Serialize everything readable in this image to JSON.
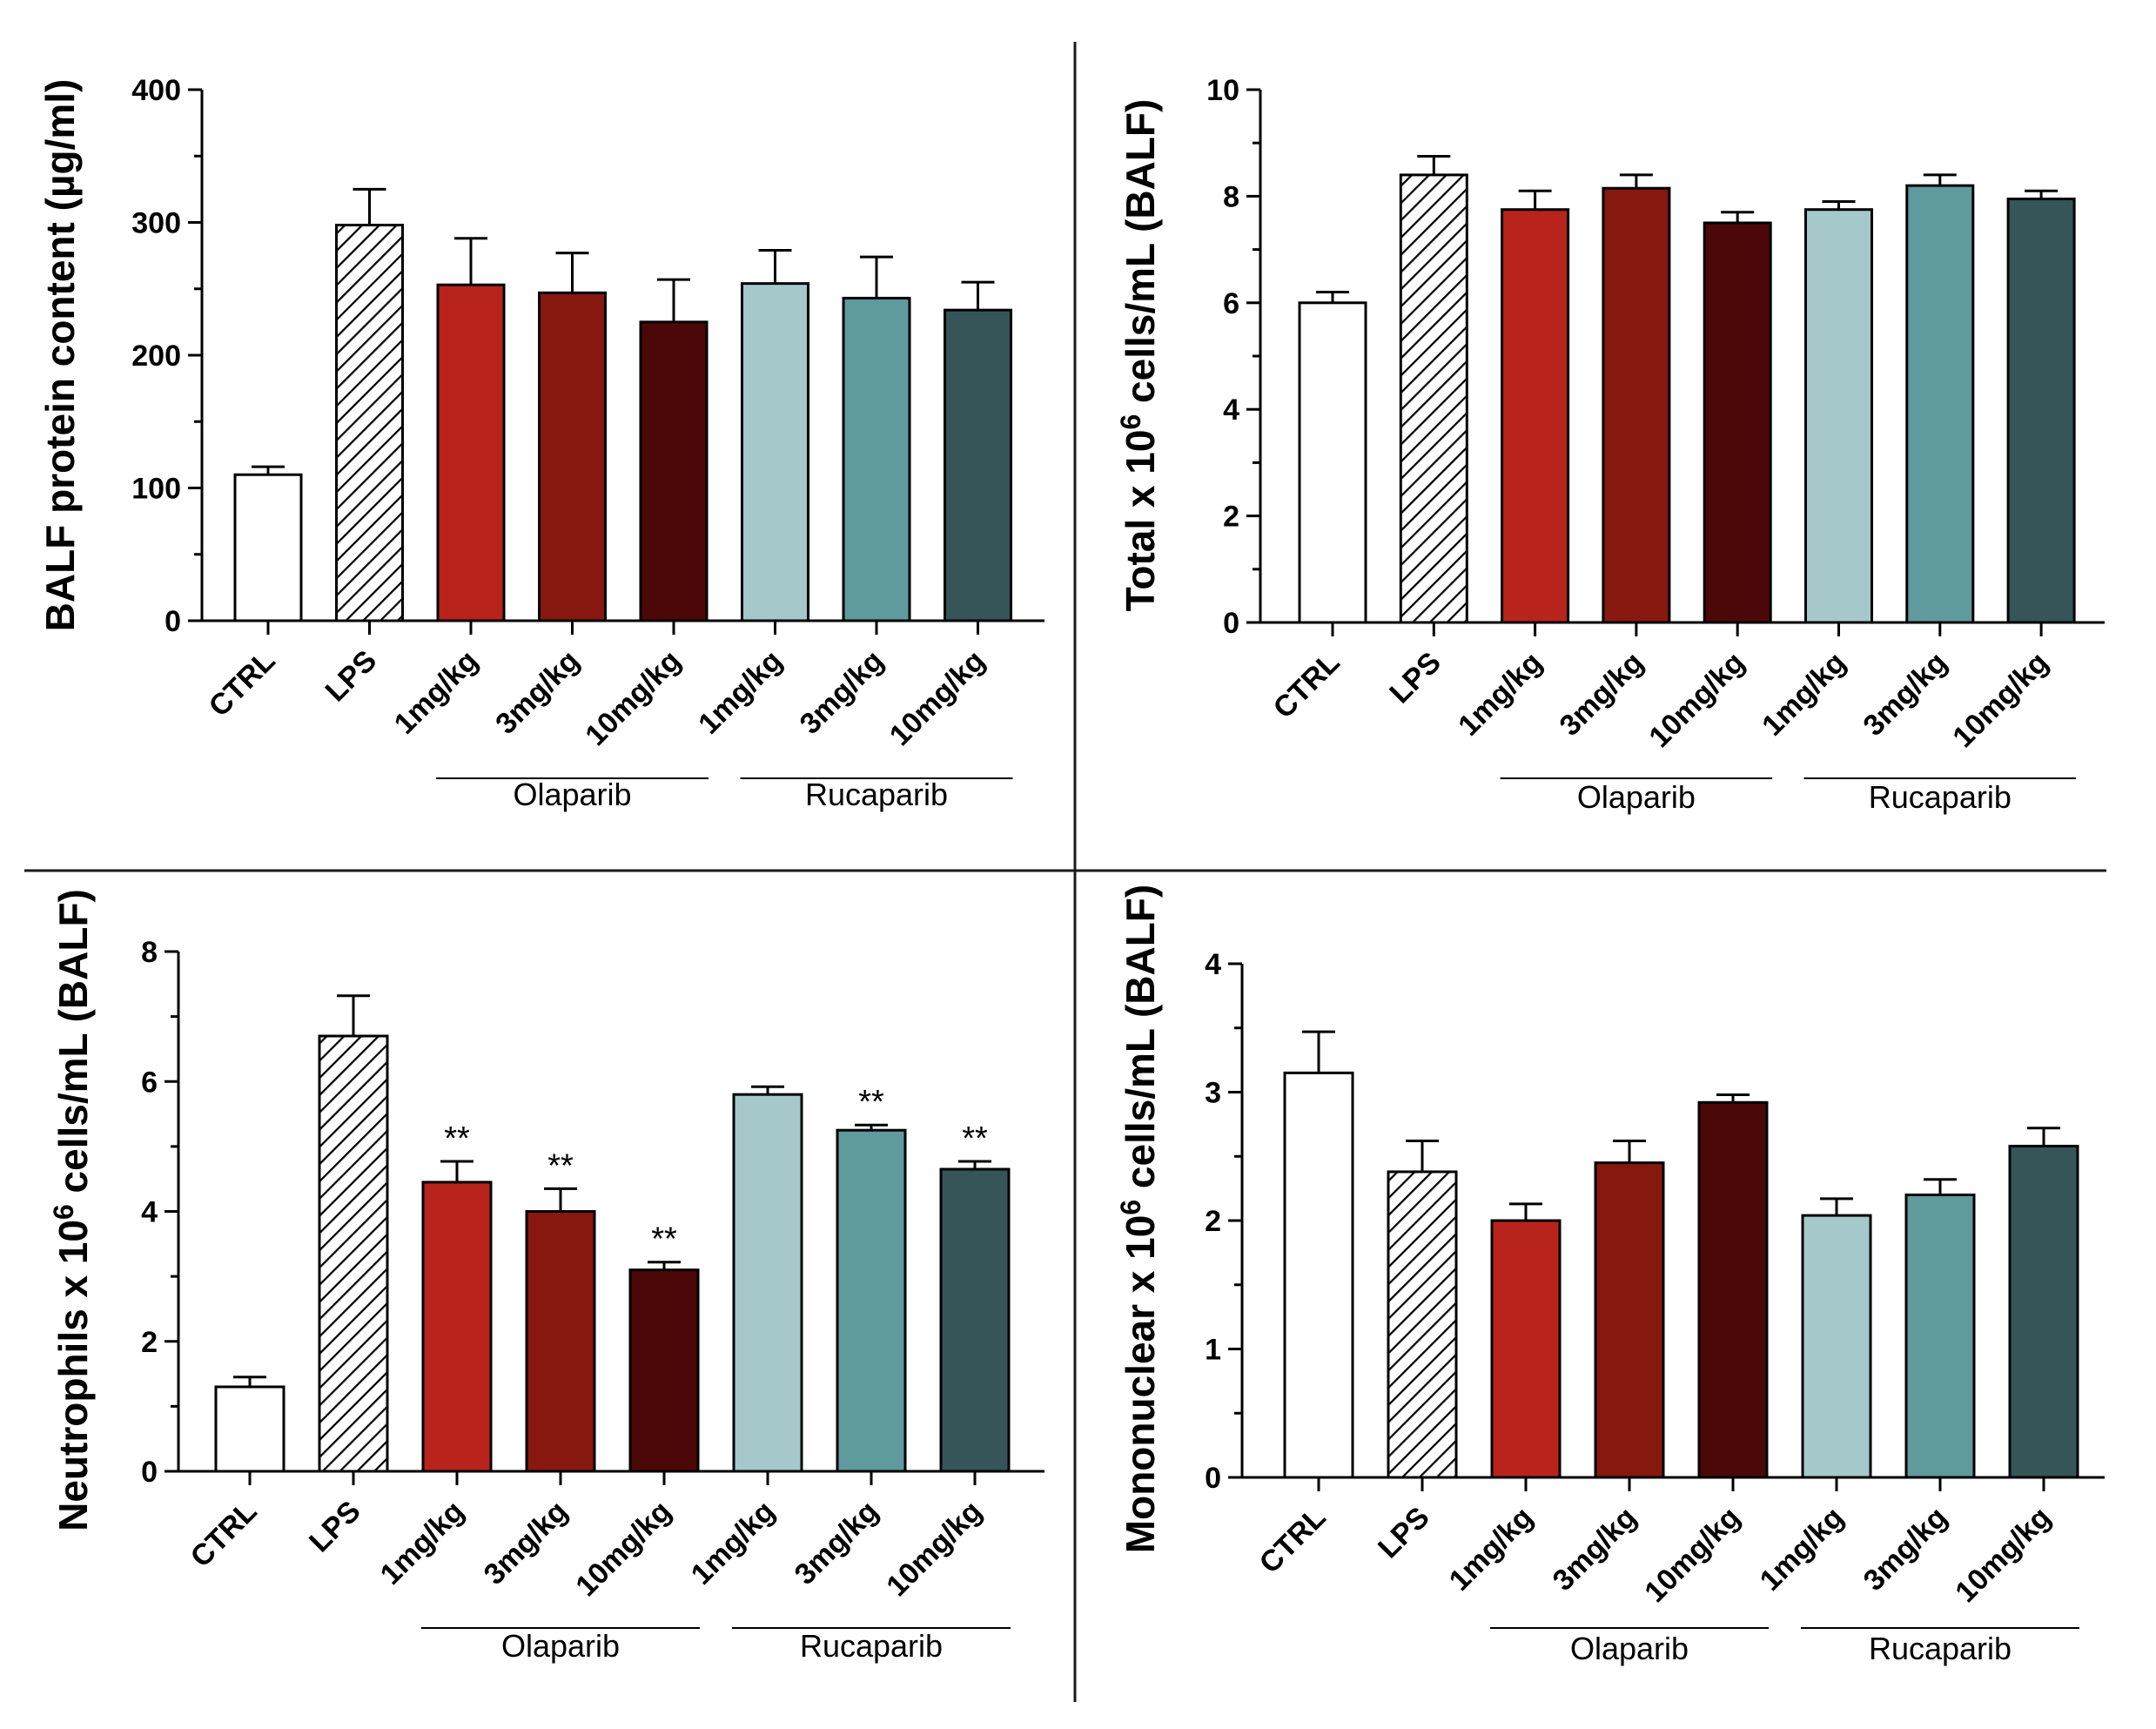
{
  "chart_data": [
    {
      "type": "bar",
      "panel": "top-left",
      "ylabel": "BALF protein content (µg/ml)",
      "ylim": [
        0,
        400
      ],
      "yticks": [
        "0",
        "100",
        "200",
        "300",
        "400"
      ],
      "categories": [
        "CTRL",
        "LPS",
        "1mg/kg",
        "3mg/kg",
        "10mg/kg",
        "1mg/kg",
        "3mg/kg",
        "10mg/kg"
      ],
      "values": [
        110,
        298,
        253,
        247,
        225,
        254,
        243,
        234
      ],
      "errors": [
        6,
        27,
        35,
        30,
        32,
        25,
        31,
        21
      ],
      "significance": [
        "",
        "",
        "",
        "",
        "",
        "",
        "",
        ""
      ],
      "groups": [
        {
          "label": "Olaparib",
          "from": 2,
          "to": 4
        },
        {
          "label": "Rucaparib",
          "from": 5,
          "to": 7
        }
      ]
    },
    {
      "type": "bar",
      "panel": "top-right",
      "ylabel_prefix": "Total x 10",
      "ylabel_sup": "6",
      "ylabel_suffix": " cells/mL (BALF)",
      "ylim": [
        0,
        10
      ],
      "yticks": [
        "0",
        "2",
        "4",
        "6",
        "8",
        "10"
      ],
      "categories": [
        "CTRL",
        "LPS",
        "1mg/kg",
        "3mg/kg",
        "10mg/kg",
        "1mg/kg",
        "3mg/kg",
        "10mg/kg"
      ],
      "values": [
        6.0,
        8.4,
        7.75,
        8.15,
        7.5,
        7.75,
        8.2,
        7.95
      ],
      "errors": [
        0.2,
        0.35,
        0.35,
        0.25,
        0.2,
        0.15,
        0.2,
        0.15
      ],
      "significance": [
        "",
        "",
        "",
        "",
        "",
        "",
        "",
        ""
      ],
      "groups": [
        {
          "label": "Olaparib",
          "from": 2,
          "to": 4
        },
        {
          "label": "Rucaparib",
          "from": 5,
          "to": 7
        }
      ]
    },
    {
      "type": "bar",
      "panel": "bottom-left",
      "ylabel_prefix": "Neutrophils x 10",
      "ylabel_sup": "6",
      "ylabel_suffix": " cells/mL (BALF)",
      "ylim": [
        0,
        8
      ],
      "yticks": [
        "0",
        "2",
        "4",
        "6",
        "8"
      ],
      "categories": [
        "CTRL",
        "LPS",
        "1mg/kg",
        "3mg/kg",
        "10mg/kg",
        "1mg/kg",
        "3mg/kg",
        "10mg/kg"
      ],
      "values": [
        1.3,
        6.7,
        4.45,
        4.0,
        3.1,
        5.8,
        5.25,
        4.65
      ],
      "errors": [
        0.15,
        0.62,
        0.32,
        0.35,
        0.12,
        0.12,
        0.08,
        0.12
      ],
      "significance": [
        "",
        "",
        "**",
        "**",
        "**",
        "",
        "**",
        "**"
      ],
      "groups": [
        {
          "label": "Olaparib",
          "from": 2,
          "to": 4
        },
        {
          "label": "Rucaparib",
          "from": 5,
          "to": 7
        }
      ]
    },
    {
      "type": "bar",
      "panel": "bottom-right",
      "ylabel_prefix": "Mononuclear x 10",
      "ylabel_sup": "6",
      "ylabel_suffix": " cells/mL (BALF)",
      "ylim": [
        0,
        4
      ],
      "yticks": [
        "0",
        "1",
        "2",
        "3",
        "4"
      ],
      "categories": [
        "CTRL",
        "LPS",
        "1mg/kg",
        "3mg/kg",
        "10mg/kg",
        "1mg/kg",
        "3mg/kg",
        "10mg/kg"
      ],
      "values": [
        3.15,
        2.38,
        2.0,
        2.45,
        2.92,
        2.04,
        2.2,
        2.58
      ],
      "errors": [
        0.32,
        0.24,
        0.13,
        0.17,
        0.06,
        0.13,
        0.12,
        0.14
      ],
      "significance": [
        "",
        "",
        "",
        "",
        "",
        "",
        "",
        ""
      ],
      "groups": [
        {
          "label": "Olaparib",
          "from": 2,
          "to": 4
        },
        {
          "label": "Rucaparib",
          "from": 5,
          "to": 7
        }
      ]
    }
  ],
  "bar_fills": [
    "#ffffff",
    "hatch",
    "#b8231b",
    "#861810",
    "#4c0808",
    "#a5c8ca",
    "#5f9a9c",
    "#355558"
  ],
  "colors": {
    "stroke": "#000000",
    "divider": "#1a1a1a"
  }
}
